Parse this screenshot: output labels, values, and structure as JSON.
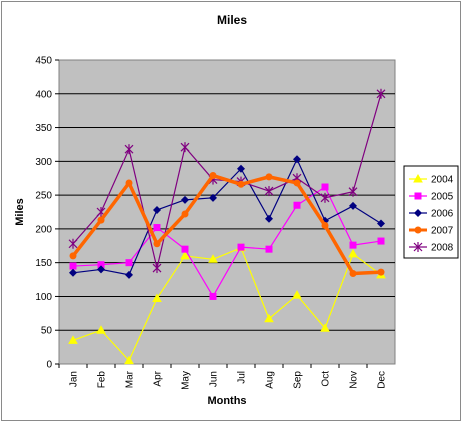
{
  "chart_data": {
    "type": "line",
    "title": "Miles",
    "xlabel": "Months",
    "ylabel": "Miles",
    "categories": [
      "Jan",
      "Feb",
      "Mar",
      "Apr",
      "May",
      "Jun",
      "Jul",
      "Aug",
      "Sep",
      "Oct",
      "Nov",
      "Dec"
    ],
    "ylim": [
      0,
      450
    ],
    "yticks": [
      0,
      50,
      100,
      150,
      200,
      250,
      300,
      350,
      400,
      450
    ],
    "grid": "horizontal",
    "legend_position": "right",
    "plot_background": "#c0c0c0",
    "series": [
      {
        "name": "2004",
        "color": "#ffff00",
        "marker": "triangle",
        "thick": false,
        "values": [
          35,
          50,
          5,
          97,
          160,
          155,
          172,
          67,
          102,
          53,
          163,
          132
        ]
      },
      {
        "name": "2005",
        "color": "#ff00ff",
        "marker": "square",
        "thick": false,
        "values": [
          145,
          147,
          150,
          202,
          170,
          100,
          173,
          170,
          235,
          262,
          176,
          182
        ]
      },
      {
        "name": "2006",
        "color": "#000080",
        "marker": "diamond",
        "thick": false,
        "values": [
          135,
          140,
          132,
          228,
          243,
          246,
          289,
          215,
          303,
          212,
          234,
          208
        ]
      },
      {
        "name": "2007",
        "color": "#ff6600",
        "marker": "circle",
        "thick": true,
        "values": [
          160,
          213,
          268,
          178,
          222,
          279,
          266,
          277,
          268,
          205,
          134,
          136
        ]
      },
      {
        "name": "2008",
        "color": "#800080",
        "marker": "star",
        "thick": false,
        "values": [
          178,
          225,
          318,
          142,
          321,
          273,
          270,
          256,
          275,
          246,
          255,
          400
        ]
      }
    ]
  }
}
